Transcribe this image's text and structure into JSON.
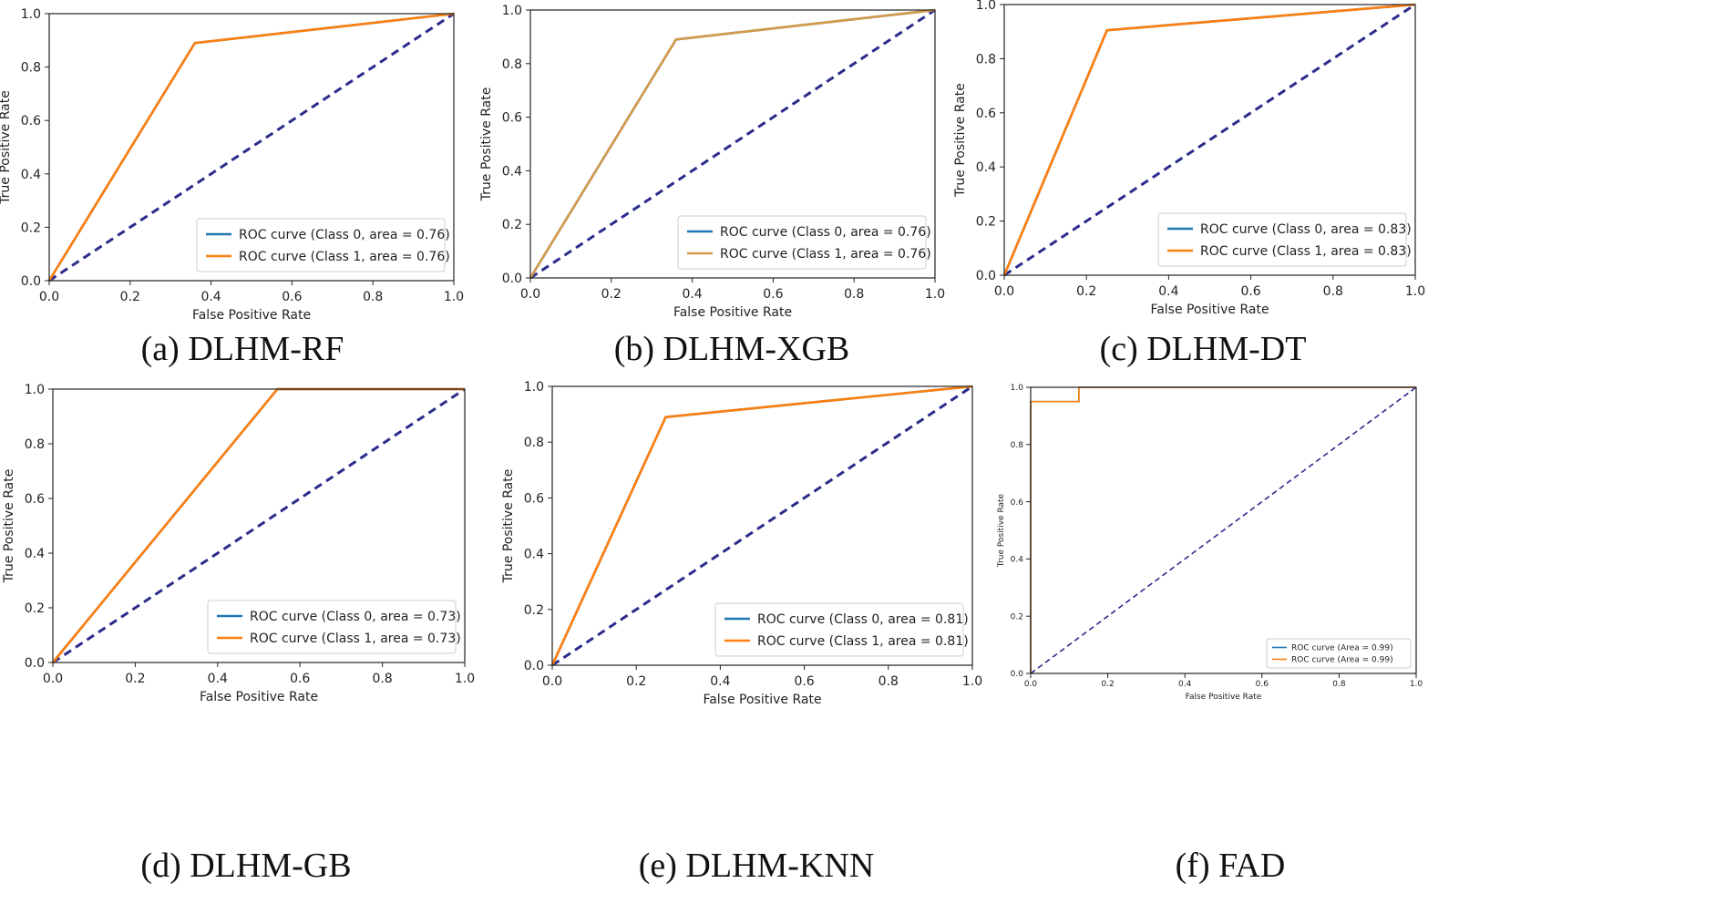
{
  "chart_data": [
    {
      "type": "line",
      "caption": "(a) DLHM-RF",
      "xlabel": "False Positive Rate",
      "ylabel": "True Positive Rate",
      "xlim": [
        0,
        1
      ],
      "ylim": [
        0,
        1
      ],
      "xticks": [
        "0.0",
        "0.2",
        "0.4",
        "0.6",
        "0.8",
        "1.0"
      ],
      "yticks": [
        "0.0",
        "0.2",
        "0.4",
        "0.6",
        "0.8",
        "1.0"
      ],
      "legend_position": "lower-right",
      "series": [
        {
          "name": "ROC curve (Class 0, area = 0.76)",
          "color": "#1f77b4",
          "x": [
            0,
            0.36,
            1
          ],
          "y": [
            0,
            0.89,
            1
          ]
        },
        {
          "name": "ROC curve (Class 1, area = 0.76)",
          "color": "#ff7f0e",
          "x": [
            0,
            0.36,
            1
          ],
          "y": [
            0,
            0.89,
            1
          ]
        }
      ],
      "reference_line": {
        "color": "#2b2b8c",
        "style": "dashed",
        "x": [
          0,
          1
        ],
        "y": [
          0,
          1
        ]
      }
    },
    {
      "type": "line",
      "caption": "(b) DLHM-XGB",
      "xlabel": "False Positive Rate",
      "ylabel": "True Positive Rate",
      "xlim": [
        0,
        1
      ],
      "ylim": [
        0,
        1
      ],
      "xticks": [
        "0.0",
        "0.2",
        "0.4",
        "0.6",
        "0.8",
        "1.0"
      ],
      "yticks": [
        "0.0",
        "0.2",
        "0.4",
        "0.6",
        "0.8",
        "1.0"
      ],
      "legend_position": "lower-right",
      "series": [
        {
          "name": "ROC curve (Class 0, area = 0.76)",
          "color": "#1f77b4",
          "x": [
            0,
            0.36,
            1
          ],
          "y": [
            0,
            0.89,
            1
          ]
        },
        {
          "name": "ROC curve (Class 1, area = 0.76)",
          "color": "#d49a4a",
          "x": [
            0,
            0.36,
            1
          ],
          "y": [
            0,
            0.89,
            1
          ]
        }
      ],
      "reference_line": {
        "color": "#2b2b8c",
        "style": "dashed",
        "x": [
          0,
          1
        ],
        "y": [
          0,
          1
        ]
      }
    },
    {
      "type": "line",
      "caption": "(c) DLHM-DT",
      "xlabel": "False Positive Rate",
      "ylabel": "True Positive Rate",
      "xlim": [
        0,
        1
      ],
      "ylim": [
        0,
        1
      ],
      "xticks": [
        "0.0",
        "0.2",
        "0.4",
        "0.6",
        "0.8",
        "1.0"
      ],
      "yticks": [
        "0.0",
        "0.2",
        "0.4",
        "0.6",
        "0.8",
        "1.0"
      ],
      "legend_position": "lower-right",
      "series": [
        {
          "name": "ROC curve (Class 0, area = 0.83)",
          "color": "#1f77b4",
          "x": [
            0,
            0.25,
            1
          ],
          "y": [
            0,
            0.905,
            1
          ]
        },
        {
          "name": "ROC curve (Class 1, area = 0.83)",
          "color": "#ff7f0e",
          "x": [
            0,
            0.25,
            1
          ],
          "y": [
            0,
            0.905,
            1
          ]
        }
      ],
      "reference_line": {
        "color": "#2b2b8c",
        "style": "dashed",
        "x": [
          0,
          1
        ],
        "y": [
          0,
          1
        ]
      }
    },
    {
      "type": "line",
      "caption": "(d) DLHM-GB",
      "xlabel": "False Positive Rate",
      "ylabel": "True Positive Rate",
      "xlim": [
        0,
        1
      ],
      "ylim": [
        0,
        1
      ],
      "xticks": [
        "0.0",
        "0.2",
        "0.4",
        "0.6",
        "0.8",
        "1.0"
      ],
      "yticks": [
        "0.0",
        "0.2",
        "0.4",
        "0.6",
        "0.8",
        "1.0"
      ],
      "legend_position": "lower-right",
      "series": [
        {
          "name": "ROC curve (Class 0, area = 0.73)",
          "color": "#1f77b4",
          "x": [
            0,
            0.545,
            1
          ],
          "y": [
            0,
            1.0,
            1
          ]
        },
        {
          "name": "ROC curve (Class 1, area = 0.73)",
          "color": "#ff7f0e",
          "x": [
            0,
            0.545,
            1
          ],
          "y": [
            0,
            1.0,
            1
          ]
        }
      ],
      "reference_line": {
        "color": "#2b2b8c",
        "style": "dashed",
        "x": [
          0,
          1
        ],
        "y": [
          0,
          1
        ]
      }
    },
    {
      "type": "line",
      "caption": "(e) DLHM-KNN",
      "xlabel": "False Positive Rate",
      "ylabel": "True Positive Rate",
      "xlim": [
        0,
        1
      ],
      "ylim": [
        0,
        1
      ],
      "xticks": [
        "0.0",
        "0.2",
        "0.4",
        "0.6",
        "0.8",
        "1.0"
      ],
      "yticks": [
        "0.0",
        "0.2",
        "0.4",
        "0.6",
        "0.8",
        "1.0"
      ],
      "legend_position": "lower-right",
      "series": [
        {
          "name": "ROC curve (Class 0, area = 0.81)",
          "color": "#1f77b4",
          "x": [
            0,
            0.27,
            1
          ],
          "y": [
            0,
            0.89,
            1
          ]
        },
        {
          "name": "ROC curve (Class 1, area = 0.81)",
          "color": "#ff7f0e",
          "x": [
            0,
            0.27,
            1
          ],
          "y": [
            0,
            0.89,
            1
          ]
        }
      ],
      "reference_line": {
        "color": "#2b2b8c",
        "style": "dashed",
        "x": [
          0,
          1
        ],
        "y": [
          0,
          1
        ]
      }
    },
    {
      "type": "line",
      "caption": "(f) FAD",
      "xlabel": "False Positive Rate",
      "ylabel": "True Positive Rate",
      "xlim": [
        0,
        1
      ],
      "ylim": [
        0,
        1
      ],
      "xticks": [
        "0.0",
        "0.2",
        "0.4",
        "0.6",
        "0.8",
        "1.0"
      ],
      "yticks": [
        "0.0",
        "0.2",
        "0.4",
        "0.6",
        "0.8",
        "1.0"
      ],
      "legend_position": "lower-right",
      "series": [
        {
          "name": "ROC curve (Area = 0.99)",
          "color": "#1f77b4",
          "x": [
            0,
            0,
            0.125,
            0.125,
            1
          ],
          "y": [
            0,
            0.95,
            0.95,
            1.0,
            1.0
          ]
        },
        {
          "name": "ROC curve (Area = 0.99)",
          "color": "#ff7f0e",
          "x": [
            0,
            0,
            0.125,
            0.125,
            1
          ],
          "y": [
            0,
            0.95,
            0.95,
            1.0,
            1.0
          ]
        }
      ],
      "reference_line": {
        "color": "#2b2b8c",
        "style": "dashed",
        "x": [
          0,
          1
        ],
        "y": [
          0,
          1
        ]
      }
    }
  ]
}
